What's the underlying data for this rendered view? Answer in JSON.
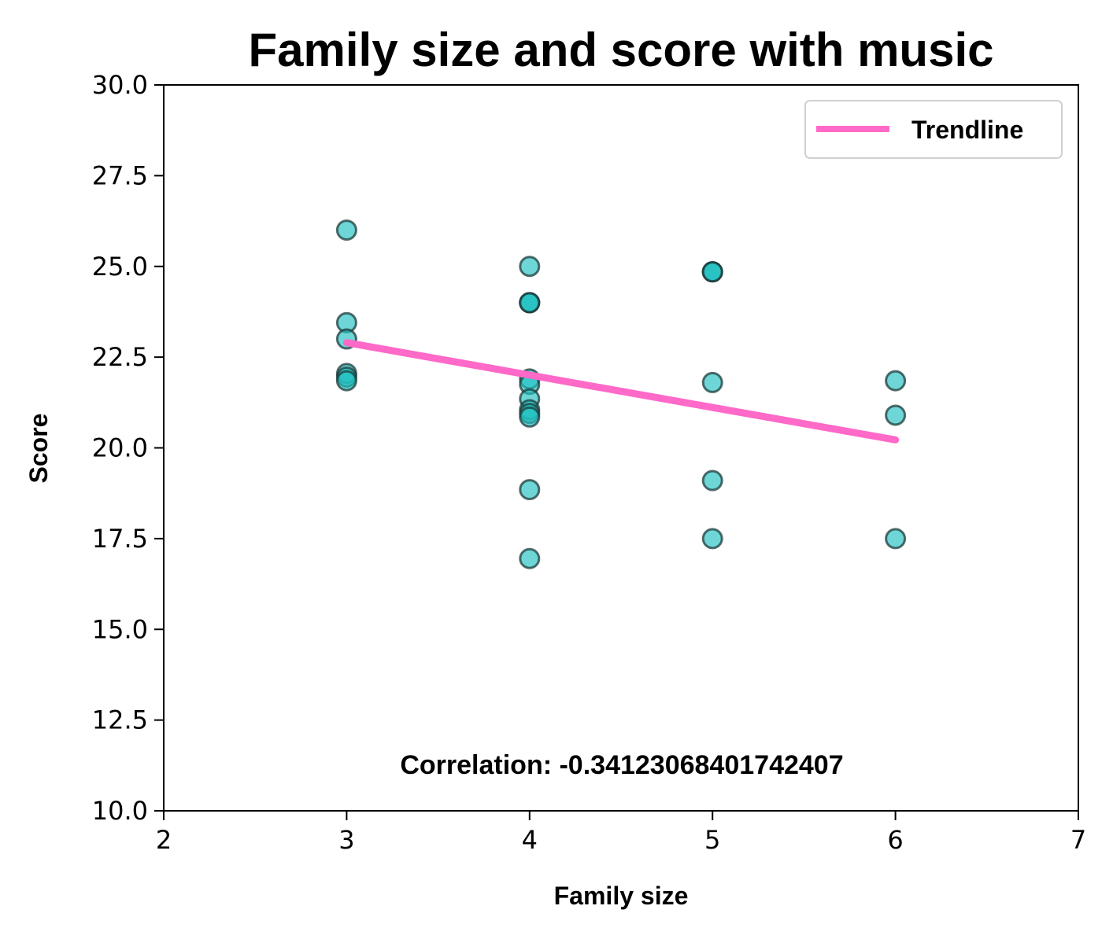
{
  "chart_data": {
    "type": "scatter",
    "title": "Family size and score with music",
    "xlabel": "Family size",
    "ylabel": "Score",
    "xlim": [
      2,
      7
    ],
    "ylim": [
      10,
      30
    ],
    "xticks": [
      "2",
      "3",
      "4",
      "5",
      "6",
      "7"
    ],
    "yticks": [
      "10.0",
      "12.5",
      "15.0",
      "17.5",
      "20.0",
      "22.5",
      "25.0",
      "27.5",
      "30.0"
    ],
    "grid": false,
    "legend_position": "top-right",
    "series": [
      {
        "type": "scatter",
        "color": "#20c0c0",
        "points": [
          {
            "x": 3,
            "y": 26.0
          },
          {
            "x": 3,
            "y": 23.45
          },
          {
            "x": 3,
            "y": 23.0
          },
          {
            "x": 3,
            "y": 22.05
          },
          {
            "x": 3,
            "y": 21.95
          },
          {
            "x": 3,
            "y": 21.85
          },
          {
            "x": 4,
            "y": 25.0
          },
          {
            "x": 4,
            "y": 24.0
          },
          {
            "x": 4,
            "y": 24.0
          },
          {
            "x": 4,
            "y": 24.0
          },
          {
            "x": 4,
            "y": 21.9
          },
          {
            "x": 4,
            "y": 21.75
          },
          {
            "x": 4,
            "y": 21.35
          },
          {
            "x": 4,
            "y": 21.05
          },
          {
            "x": 4,
            "y": 20.95
          },
          {
            "x": 4,
            "y": 20.85
          },
          {
            "x": 4,
            "y": 18.85
          },
          {
            "x": 4,
            "y": 16.95
          },
          {
            "x": 5,
            "y": 24.85
          },
          {
            "x": 5,
            "y": 24.85
          },
          {
            "x": 5,
            "y": 24.85
          },
          {
            "x": 5,
            "y": 21.8
          },
          {
            "x": 5,
            "y": 19.1
          },
          {
            "x": 5,
            "y": 17.5
          },
          {
            "x": 6,
            "y": 21.85
          },
          {
            "x": 6,
            "y": 20.9
          },
          {
            "x": 6,
            "y": 17.5
          }
        ]
      },
      {
        "type": "line",
        "name": "Trendline",
        "color": "#ff69c8",
        "x": [
          3,
          6
        ],
        "y": [
          22.9,
          20.22
        ]
      }
    ],
    "annotations": [
      {
        "text": "Correlation: -0.34123068401742407",
        "x": 4.5,
        "y": 11.3
      }
    ]
  }
}
